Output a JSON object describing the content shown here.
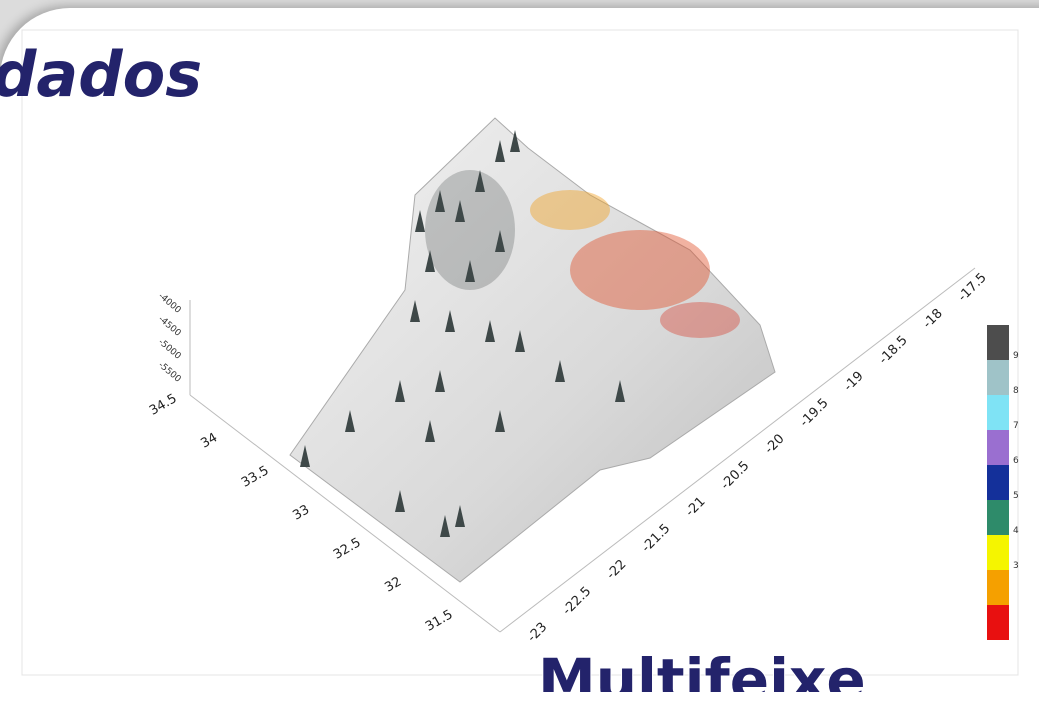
{
  "slide": {
    "title_fragment": "dados",
    "bottom_text": "Multifeixe"
  },
  "plot": {
    "depth_ticks": [
      "-4000",
      "-4500",
      "-5000",
      "-5500"
    ],
    "lat_ticks": [
      "34.5",
      "34",
      "33.5",
      "33",
      "32.5",
      "32",
      "31.5"
    ],
    "lon_ticks": [
      "-23",
      "-22.5",
      "-22",
      "-21.5",
      "-21",
      "-20.5",
      "-20",
      "-19.5",
      "-19",
      "-18.5",
      "-18",
      "-17.5"
    ],
    "colorbar": {
      "colors": [
        "#4d4d4d",
        "#9fc3c8",
        "#7fe3f5",
        "#9a6fd0",
        "#14309a",
        "#2e8b6a",
        "#f5f500",
        "#f5a000",
        "#e81010"
      ],
      "labels": [
        "9",
        "8",
        "7",
        "6",
        "5",
        "4",
        "3"
      ]
    }
  }
}
